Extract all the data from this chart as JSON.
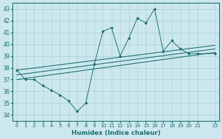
{
  "xlabel": "Humidex (Indice chaleur)",
  "ylabel": "",
  "bg_color": "#cce8ee",
  "line_color": "#1a6e6a",
  "grid_color": "#aacdd6",
  "xlim": [
    -0.5,
    23.5
  ],
  "ylim": [
    33.5,
    43.5
  ],
  "yticks": [
    34,
    35,
    36,
    37,
    38,
    39,
    40,
    41,
    42,
    43
  ],
  "xticks": [
    0,
    1,
    2,
    3,
    4,
    5,
    6,
    7,
    8,
    9,
    10,
    11,
    12,
    13,
    14,
    15,
    16,
    17,
    18,
    19,
    20,
    21,
    23
  ],
  "main_x": [
    0,
    1,
    2,
    3,
    4,
    5,
    6,
    7,
    8,
    9,
    10,
    11,
    12,
    13,
    14,
    15,
    16,
    17,
    18,
    19,
    20,
    21,
    23
  ],
  "main_y": [
    37.8,
    37.0,
    37.0,
    36.5,
    36.1,
    35.7,
    35.2,
    34.3,
    35.0,
    38.3,
    41.1,
    41.4,
    39.0,
    40.5,
    42.2,
    41.8,
    43.0,
    39.4,
    40.3,
    39.6,
    39.2,
    39.2,
    39.2
  ],
  "trend_lines": [
    {
      "x": [
        0,
        23
      ],
      "y": [
        37.0,
        39.3
      ]
    },
    {
      "x": [
        0,
        23
      ],
      "y": [
        37.4,
        39.6
      ]
    },
    {
      "x": [
        0,
        23
      ],
      "y": [
        37.8,
        39.9
      ]
    }
  ]
}
